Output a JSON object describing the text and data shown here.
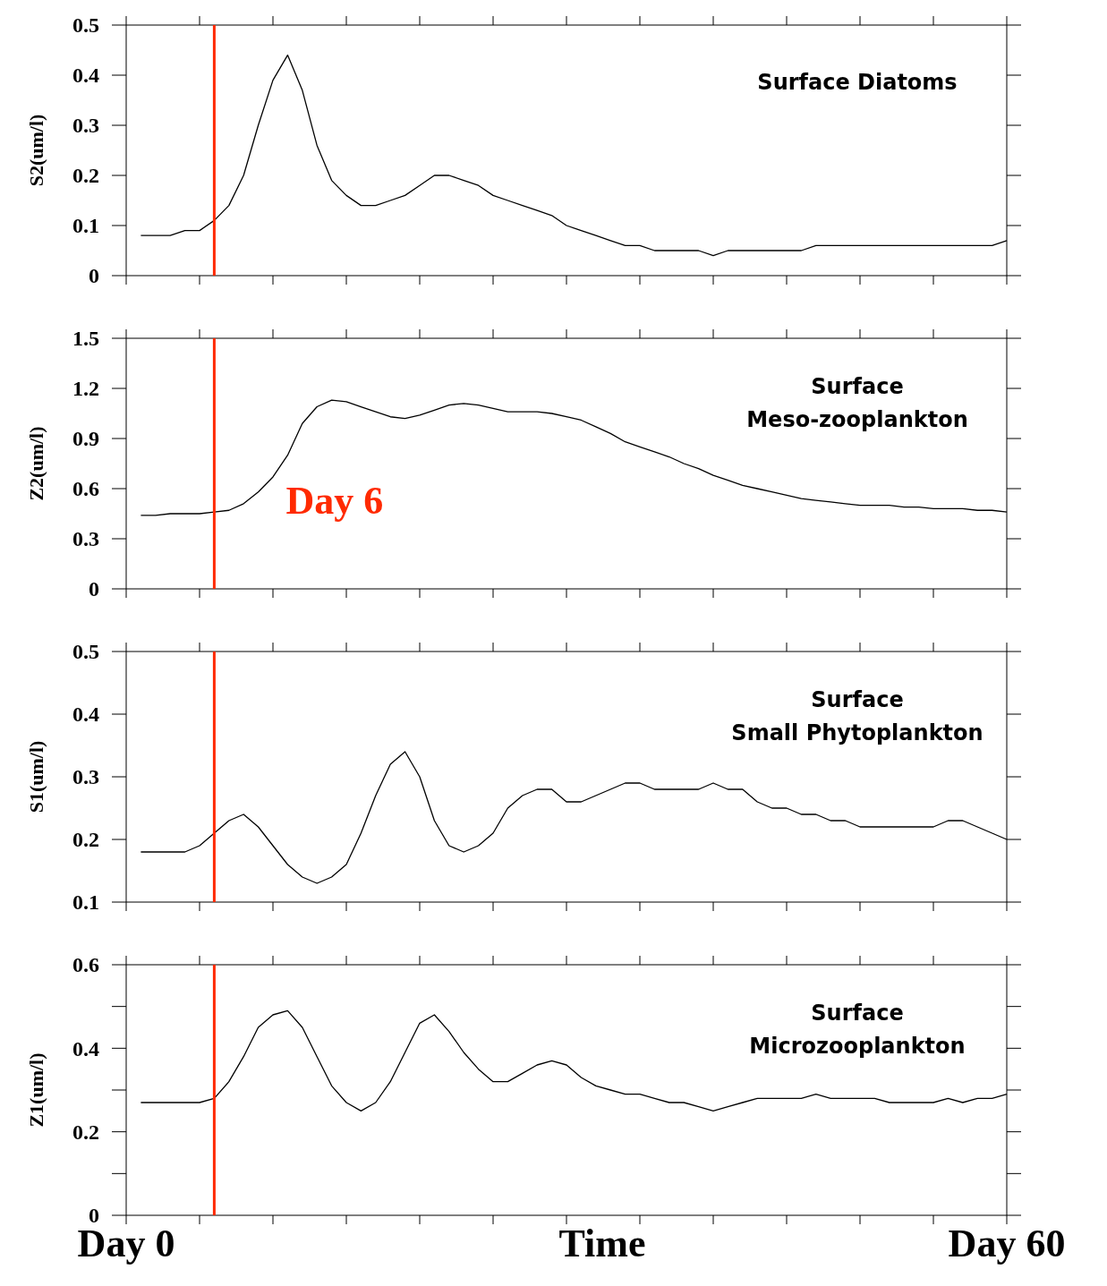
{
  "chart_data": [
    {
      "type": "line",
      "title": "Surface Diatoms",
      "ylabel": "S2(um/l)",
      "categories": [
        null,
        null,
        null,
        null,
        null,
        null,
        null,
        null,
        null,
        null,
        null,
        null,
        null,
        null,
        null,
        null,
        null,
        null,
        null,
        null,
        null,
        null,
        null,
        null,
        null,
        null,
        null,
        null,
        null,
        null,
        null,
        null,
        null,
        null,
        null,
        null,
        null,
        null,
        null,
        null,
        null,
        null,
        null,
        null,
        null,
        null,
        null,
        null,
        null,
        null,
        null,
        null,
        null,
        null,
        null,
        null,
        null,
        null,
        null,
        null,
        null
      ],
      "ylim": [
        0,
        0.5
      ],
      "yticks": [
        0,
        0.1,
        0.2,
        0.3,
        0.4,
        0.5
      ],
      "tick_labels": "y",
      "series": [
        {
          "color": "#000000",
          "values": [
            null,
            0.08,
            0.08,
            0.08,
            0.09,
            0.09,
            0.11,
            0.14,
            0.2,
            0.3,
            0.39,
            0.44,
            0.37,
            0.26,
            0.19,
            0.16,
            0.14,
            0.14,
            0.15,
            0.16,
            0.18,
            0.2,
            0.2,
            0.19,
            0.18,
            0.16,
            0.15,
            0.14,
            0.13,
            0.12,
            0.1,
            0.09,
            0.08,
            0.07,
            0.06,
            0.06,
            0.05,
            0.05,
            0.05,
            0.05,
            0.04,
            0.05,
            0.05,
            0.05,
            0.05,
            0.05,
            0.05,
            0.06,
            0.06,
            0.06,
            0.06,
            0.06,
            0.06,
            0.06,
            0.06,
            0.06,
            0.06,
            0.06,
            0.06,
            0.06,
            0.07
          ]
        }
      ]
    },
    {
      "type": "line",
      "title": "Surface\nMeso-zooplankton",
      "ylabel": "Z2(um/l)",
      "categories": [
        null,
        null,
        null,
        null,
        null,
        null,
        null,
        null,
        null,
        null,
        null,
        null,
        null,
        null,
        null,
        null,
        null,
        null,
        null,
        null,
        null,
        null,
        null,
        null,
        null,
        null,
        null,
        null,
        null,
        null,
        null,
        null,
        null,
        null,
        null,
        null,
        null,
        null,
        null,
        null,
        null,
        null,
        null,
        null,
        null,
        null,
        null,
        null,
        null,
        null,
        null,
        null,
        null,
        null,
        null,
        null,
        null,
        null,
        null,
        null,
        null
      ],
      "ylim": [
        0,
        1.5
      ],
      "yticks": [
        0,
        0.3,
        0.6,
        0.9,
        1.2,
        1.5
      ],
      "tick_labels": "y",
      "annotations": [
        "Day 6"
      ],
      "series": [
        {
          "color": "#000000",
          "values": [
            null,
            0.44,
            0.44,
            0.45,
            0.45,
            0.45,
            0.46,
            0.47,
            0.51,
            0.58,
            0.67,
            0.8,
            0.99,
            1.09,
            1.13,
            1.12,
            1.09,
            1.06,
            1.03,
            1.02,
            1.04,
            1.07,
            1.1,
            1.11,
            1.1,
            1.08,
            1.06,
            1.06,
            1.06,
            1.05,
            1.03,
            1.01,
            0.97,
            0.93,
            0.88,
            0.85,
            0.82,
            0.79,
            0.75,
            0.72,
            0.68,
            0.65,
            0.62,
            0.6,
            0.58,
            0.56,
            0.54,
            0.53,
            0.52,
            0.51,
            0.5,
            0.5,
            0.5,
            0.49,
            0.49,
            0.48,
            0.48,
            0.48,
            0.47,
            0.47,
            0.46
          ]
        }
      ]
    },
    {
      "type": "line",
      "title": "Surface\nSmall Phytoplankton",
      "ylabel": "S1(um/l)",
      "categories": [
        null,
        null,
        null,
        null,
        null,
        null,
        null,
        null,
        null,
        null,
        null,
        null,
        null,
        null,
        null,
        null,
        null,
        null,
        null,
        null,
        null,
        null,
        null,
        null,
        null,
        null,
        null,
        null,
        null,
        null,
        null,
        null,
        null,
        null,
        null,
        null,
        null,
        null,
        null,
        null,
        null,
        null,
        null,
        null,
        null,
        null,
        null,
        null,
        null,
        null,
        null,
        null,
        null,
        null,
        null,
        null,
        null,
        null,
        null,
        null,
        null
      ],
      "ylim": [
        0.1,
        0.5
      ],
      "yticks": [
        0.1,
        0.2,
        0.3,
        0.4,
        0.5
      ],
      "tick_labels": "y",
      "series": [
        {
          "color": "#000000",
          "values": [
            null,
            0.18,
            0.18,
            0.18,
            0.18,
            0.19,
            0.21,
            0.23,
            0.24,
            0.22,
            0.19,
            0.16,
            0.14,
            0.13,
            0.14,
            0.16,
            0.21,
            0.27,
            0.32,
            0.34,
            0.3,
            0.23,
            0.19,
            0.18,
            0.19,
            0.21,
            0.25,
            0.27,
            0.28,
            0.28,
            0.26,
            0.26,
            0.27,
            0.28,
            0.29,
            0.29,
            0.28,
            0.28,
            0.28,
            0.28,
            0.29,
            0.28,
            0.28,
            0.26,
            0.25,
            0.25,
            0.24,
            0.24,
            0.23,
            0.23,
            0.22,
            0.22,
            0.22,
            0.22,
            0.22,
            0.22,
            0.23,
            0.23,
            0.22,
            0.21,
            0.2
          ]
        }
      ]
    },
    {
      "type": "line",
      "title": "Surface\nMicrozooplankton",
      "xlabel": "Time",
      "ylabel": "Z1(um/l)",
      "categories": [
        "Day 0",
        null,
        null,
        null,
        null,
        null,
        null,
        null,
        null,
        null,
        null,
        null,
        null,
        null,
        null,
        null,
        null,
        null,
        null,
        null,
        null,
        null,
        null,
        null,
        null,
        null,
        null,
        null,
        null,
        null,
        null,
        null,
        null,
        null,
        null,
        null,
        null,
        null,
        null,
        null,
        null,
        null,
        null,
        null,
        null,
        null,
        null,
        null,
        null,
        null,
        null,
        null,
        null,
        null,
        null,
        null,
        null,
        null,
        null,
        null,
        "Day 60"
      ],
      "ylim": [
        0,
        0.6
      ],
      "yticks": [
        0,
        {
          "value": 0.1,
          "label": null
        },
        0.2,
        {
          "value": 0.3,
          "label": null
        },
        0.4,
        {
          "value": 0.5,
          "label": null
        },
        0.6
      ],
      "series": [
        {
          "color": "#000000",
          "values": [
            null,
            0.27,
            0.27,
            0.27,
            0.27,
            0.27,
            0.28,
            0.32,
            0.38,
            0.45,
            0.48,
            0.49,
            0.45,
            0.38,
            0.31,
            0.27,
            0.25,
            0.27,
            0.32,
            0.39,
            0.46,
            0.48,
            0.44,
            0.39,
            0.35,
            0.32,
            0.32,
            0.34,
            0.36,
            0.37,
            0.36,
            0.33,
            0.31,
            0.3,
            0.29,
            0.29,
            0.28,
            0.27,
            0.27,
            0.26,
            0.25,
            0.26,
            0.27,
            0.28,
            0.28,
            0.28,
            0.28,
            0.29,
            0.28,
            0.28,
            0.28,
            0.28,
            0.27,
            0.27,
            0.27,
            0.27,
            0.28,
            0.27,
            0.28,
            0.28,
            0.29
          ]
        }
      ]
    }
  ]
}
